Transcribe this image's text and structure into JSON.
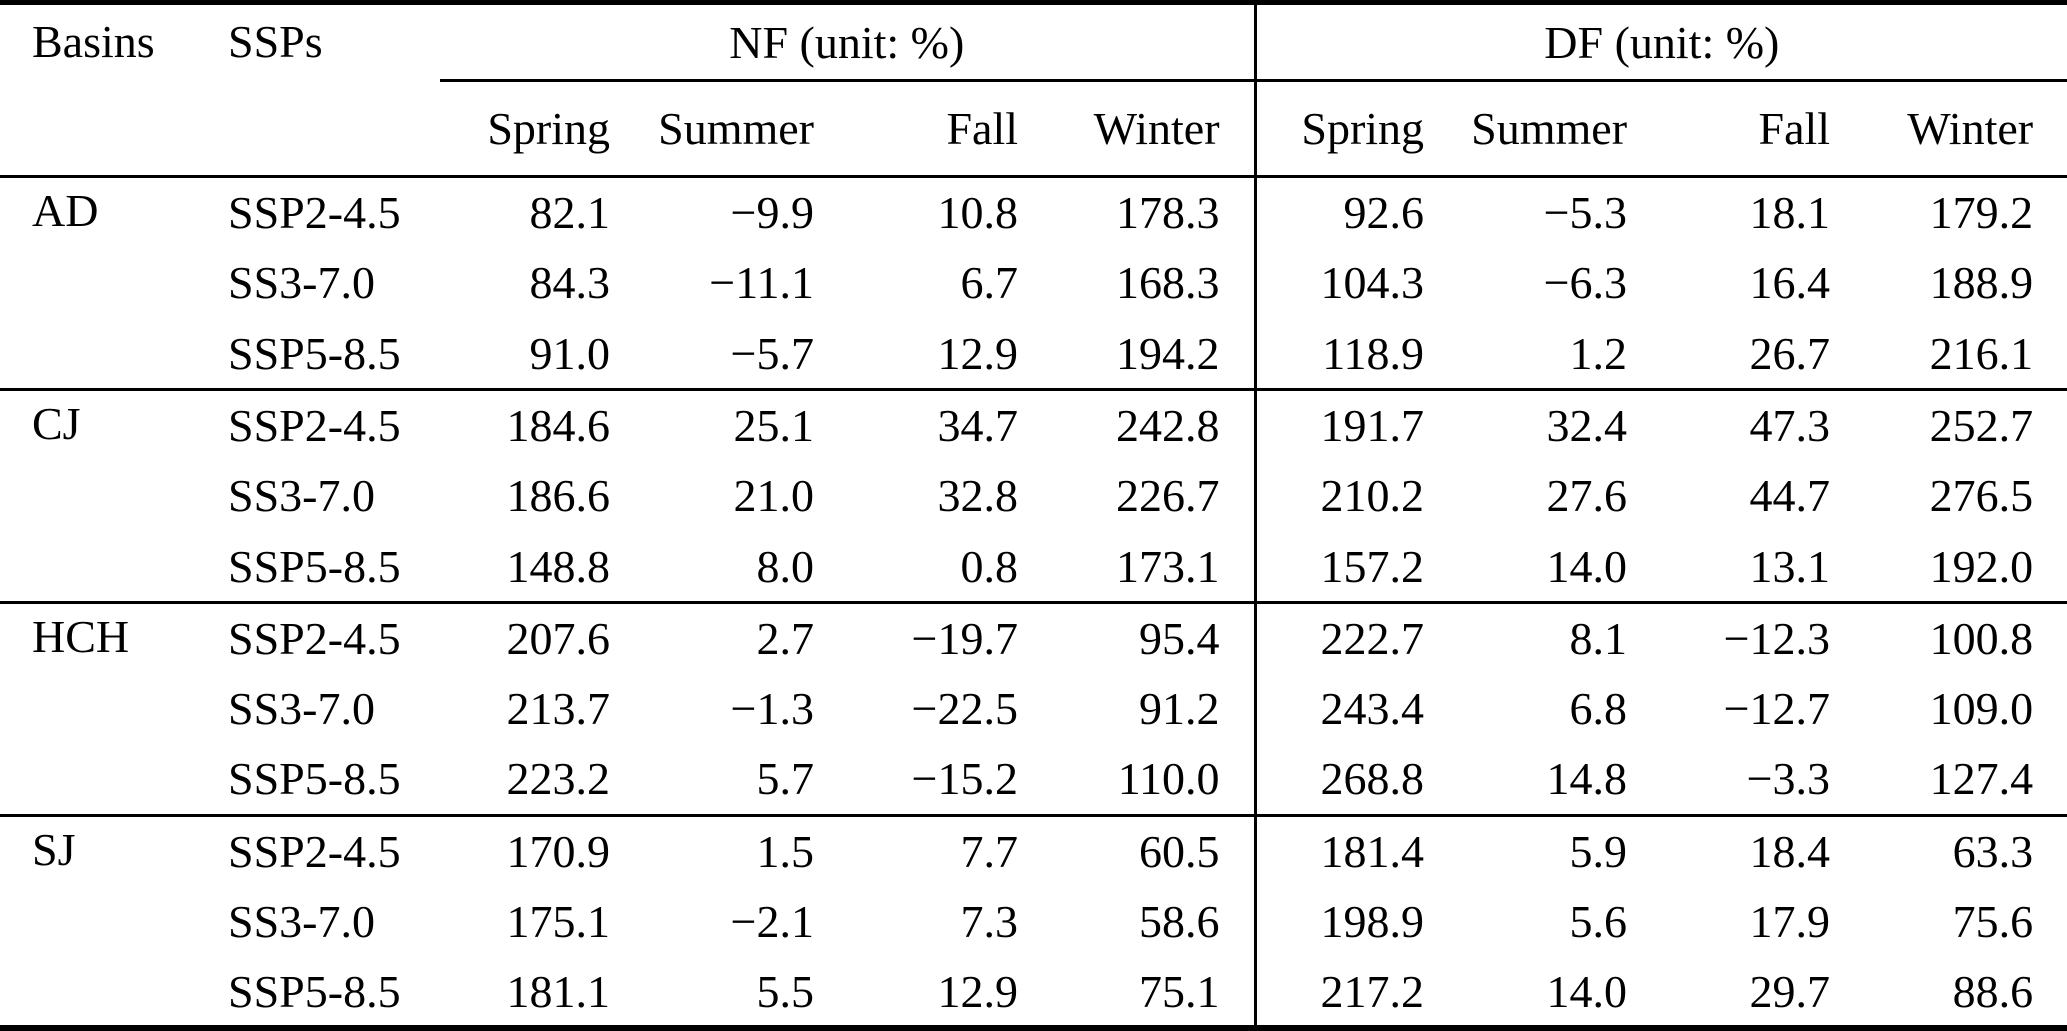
{
  "table": {
    "header": {
      "basins": "Basins",
      "ssps": "SSPs",
      "nf_group": "NF (unit: %)",
      "df_group": "DF (unit: %)",
      "seasons": [
        "Spring",
        "Summer",
        "Fall",
        "Winter"
      ]
    },
    "blocks": [
      {
        "basin": "AD",
        "rows": [
          {
            "ssp": "SSP2-4.5",
            "nf": [
              "82.1",
              "−9.9",
              "10.8",
              "178.3"
            ],
            "df": [
              "92.6",
              "−5.3",
              "18.1",
              "179.2"
            ]
          },
          {
            "ssp": "SS3-7.0",
            "nf": [
              "84.3",
              "−11.1",
              "6.7",
              "168.3"
            ],
            "df": [
              "104.3",
              "−6.3",
              "16.4",
              "188.9"
            ]
          },
          {
            "ssp": "SSP5-8.5",
            "nf": [
              "91.0",
              "−5.7",
              "12.9",
              "194.2"
            ],
            "df": [
              "118.9",
              "1.2",
              "26.7",
              "216.1"
            ]
          }
        ]
      },
      {
        "basin": "CJ",
        "rows": [
          {
            "ssp": "SSP2-4.5",
            "nf": [
              "184.6",
              "25.1",
              "34.7",
              "242.8"
            ],
            "df": [
              "191.7",
              "32.4",
              "47.3",
              "252.7"
            ]
          },
          {
            "ssp": "SS3-7.0",
            "nf": [
              "186.6",
              "21.0",
              "32.8",
              "226.7"
            ],
            "df": [
              "210.2",
              "27.6",
              "44.7",
              "276.5"
            ]
          },
          {
            "ssp": "SSP5-8.5",
            "nf": [
              "148.8",
              "8.0",
              "0.8",
              "173.1"
            ],
            "df": [
              "157.2",
              "14.0",
              "13.1",
              "192.0"
            ]
          }
        ]
      },
      {
        "basin": "HCH",
        "rows": [
          {
            "ssp": "SSP2-4.5",
            "nf": [
              "207.6",
              "2.7",
              "−19.7",
              "95.4"
            ],
            "df": [
              "222.7",
              "8.1",
              "−12.3",
              "100.8"
            ]
          },
          {
            "ssp": "SS3-7.0",
            "nf": [
              "213.7",
              "−1.3",
              "−22.5",
              "91.2"
            ],
            "df": [
              "243.4",
              "6.8",
              "−12.7",
              "109.0"
            ]
          },
          {
            "ssp": "SSP5-8.5",
            "nf": [
              "223.2",
              "5.7",
              "−15.2",
              "110.0"
            ],
            "df": [
              "268.8",
              "14.8",
              "−3.3",
              "127.4"
            ]
          }
        ]
      },
      {
        "basin": "SJ",
        "rows": [
          {
            "ssp": "SSP2-4.5",
            "nf": [
              "170.9",
              "1.5",
              "7.7",
              "60.5"
            ],
            "df": [
              "181.4",
              "5.9",
              "18.4",
              "63.3"
            ]
          },
          {
            "ssp": "SS3-7.0",
            "nf": [
              "175.1",
              "−2.1",
              "7.3",
              "58.6"
            ],
            "df": [
              "198.9",
              "5.6",
              "17.9",
              "75.6"
            ]
          },
          {
            "ssp": "SSP5-8.5",
            "nf": [
              "181.1",
              "5.5",
              "12.9",
              "75.1"
            ],
            "df": [
              "217.2",
              "14.0",
              "29.7",
              "88.6"
            ]
          }
        ]
      }
    ]
  },
  "colors": {
    "text": "#000000",
    "background": "#ffffff",
    "rule": "#000000"
  }
}
